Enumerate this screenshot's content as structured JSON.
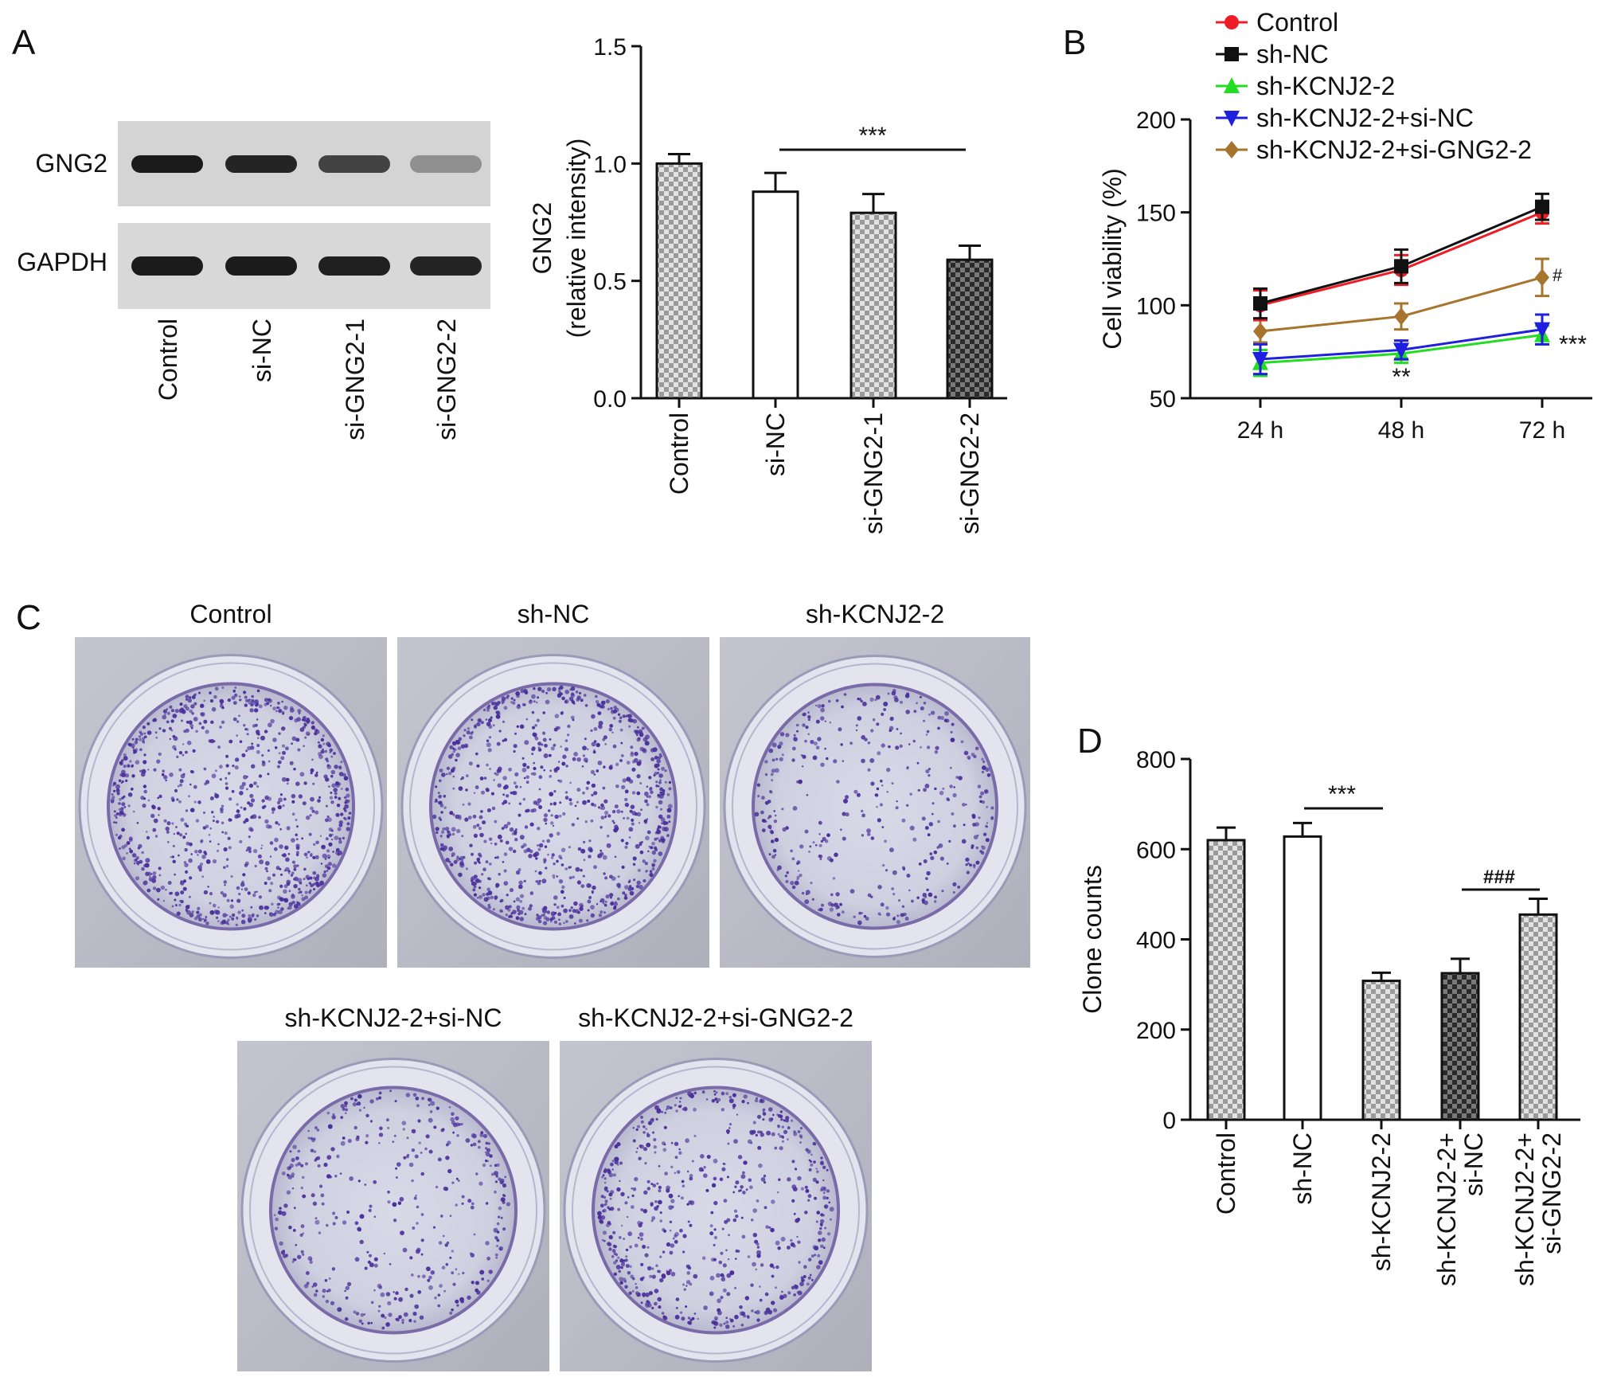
{
  "panels": {
    "A": "A",
    "B": "B",
    "C": "C",
    "D": "D"
  },
  "colors": {
    "control": "#ee1c25",
    "shnc": "#111111",
    "shkcnj2": "#22dd22",
    "shkcnj2_sinc": "#1f1fe0",
    "shkcnj2_signg2": "#a6742d"
  },
  "western_blot": {
    "bands": [
      "GNG2",
      "GAPDH"
    ],
    "lanes": [
      "Control",
      "si-NC",
      "si-GNG2-1",
      "si-GNG2-2"
    ],
    "gng2_intensity": [
      0.95,
      0.9,
      0.75,
      0.35
    ],
    "gapdh_intensity": [
      0.95,
      0.95,
      0.93,
      0.9
    ]
  },
  "plates": {
    "labels": [
      "Control",
      "sh-NC",
      "sh-KCNJ2-2",
      "sh-KCNJ2-2+si-NC",
      "sh-KCNJ2-2+si-GNG2-2"
    ],
    "colony_density": [
      1.0,
      1.0,
      0.45,
      0.45,
      0.7
    ]
  },
  "chart_data": [
    {
      "panel": "A",
      "type": "bar",
      "categories": [
        "Control",
        "si-NC",
        "si-GNG2-1",
        "si-GNG2-2"
      ],
      "values": [
        1.0,
        0.88,
        0.79,
        0.59
      ],
      "errors": [
        0.04,
        0.08,
        0.08,
        0.06
      ],
      "patterns": [
        "light-check",
        "white",
        "light-check",
        "dark-check"
      ],
      "ylabel_line1": "GNG2",
      "ylabel_line2": "(relative intensity)",
      "ylim": [
        0,
        1.5
      ],
      "yticks": [
        "0.0",
        "0.5",
        "1.0",
        "1.5"
      ],
      "significance": [
        {
          "from": 1,
          "to": 3,
          "label": "***"
        }
      ]
    },
    {
      "panel": "B",
      "type": "line",
      "x": [
        "24 h",
        "48 h",
        "72 h"
      ],
      "ylabel": "Cell viability (%)",
      "ylim": [
        50,
        200
      ],
      "yticks": [
        "50",
        "100",
        "150",
        "200"
      ],
      "legend_position": "top",
      "series": [
        {
          "name": "Control",
          "values": [
            100,
            119,
            150
          ],
          "errors": [
            8,
            8,
            6
          ],
          "marker": "circle",
          "color": "#ee1c25"
        },
        {
          "name": "sh-NC",
          "values": [
            101,
            121,
            153
          ],
          "errors": [
            8,
            9,
            7
          ],
          "marker": "square",
          "color": "#111111"
        },
        {
          "name": "sh-KCNJ2-2",
          "values": [
            69,
            74,
            84
          ],
          "errors": [
            7,
            5,
            5
          ],
          "marker": "triangle-up",
          "color": "#22dd22"
        },
        {
          "name": "sh-KCNJ2-2+si-NC",
          "values": [
            71,
            76,
            87
          ],
          "errors": [
            8,
            5,
            8
          ],
          "marker": "triangle-down",
          "color": "#1f1fe0"
        },
        {
          "name": "sh-KCNJ2-2+si-GNG2-2",
          "values": [
            86,
            94,
            115
          ],
          "errors": [
            6,
            7,
            10
          ],
          "marker": "diamond",
          "color": "#a6742d"
        }
      ],
      "annotations": [
        {
          "label": "**",
          "x": "48 h",
          "y": 61
        },
        {
          "label": "***",
          "x": "72 h",
          "y": 80
        },
        {
          "label": "#",
          "x": "72 h",
          "y": 117
        }
      ]
    },
    {
      "panel": "D",
      "type": "bar",
      "categories": [
        "Control",
        "sh-NC",
        "sh-KCNJ2-2",
        "sh-KCNJ2-2+\nsi-NC",
        "sh-KCNJ2-2+\nsi-GNG2-2"
      ],
      "category_lines": [
        [
          "Control"
        ],
        [
          "sh-NC"
        ],
        [
          "sh-KCNJ2-2"
        ],
        [
          "sh-KCNJ2-2+",
          "si-NC"
        ],
        [
          "sh-KCNJ2-2+",
          "si-GNG2-2"
        ]
      ],
      "values": [
        620,
        628,
        308,
        325,
        455
      ],
      "errors": [
        28,
        30,
        18,
        32,
        35
      ],
      "patterns": [
        "light-check",
        "white",
        "light-check",
        "dark-check",
        "light-check"
      ],
      "ylabel": "Clone counts",
      "ylim": [
        0,
        800
      ],
      "yticks": [
        "0",
        "200",
        "400",
        "600",
        "800"
      ],
      "significance": [
        {
          "from": 1,
          "to": 2,
          "label": "***"
        },
        {
          "from": 3,
          "to": 4,
          "label": "###"
        }
      ]
    }
  ]
}
